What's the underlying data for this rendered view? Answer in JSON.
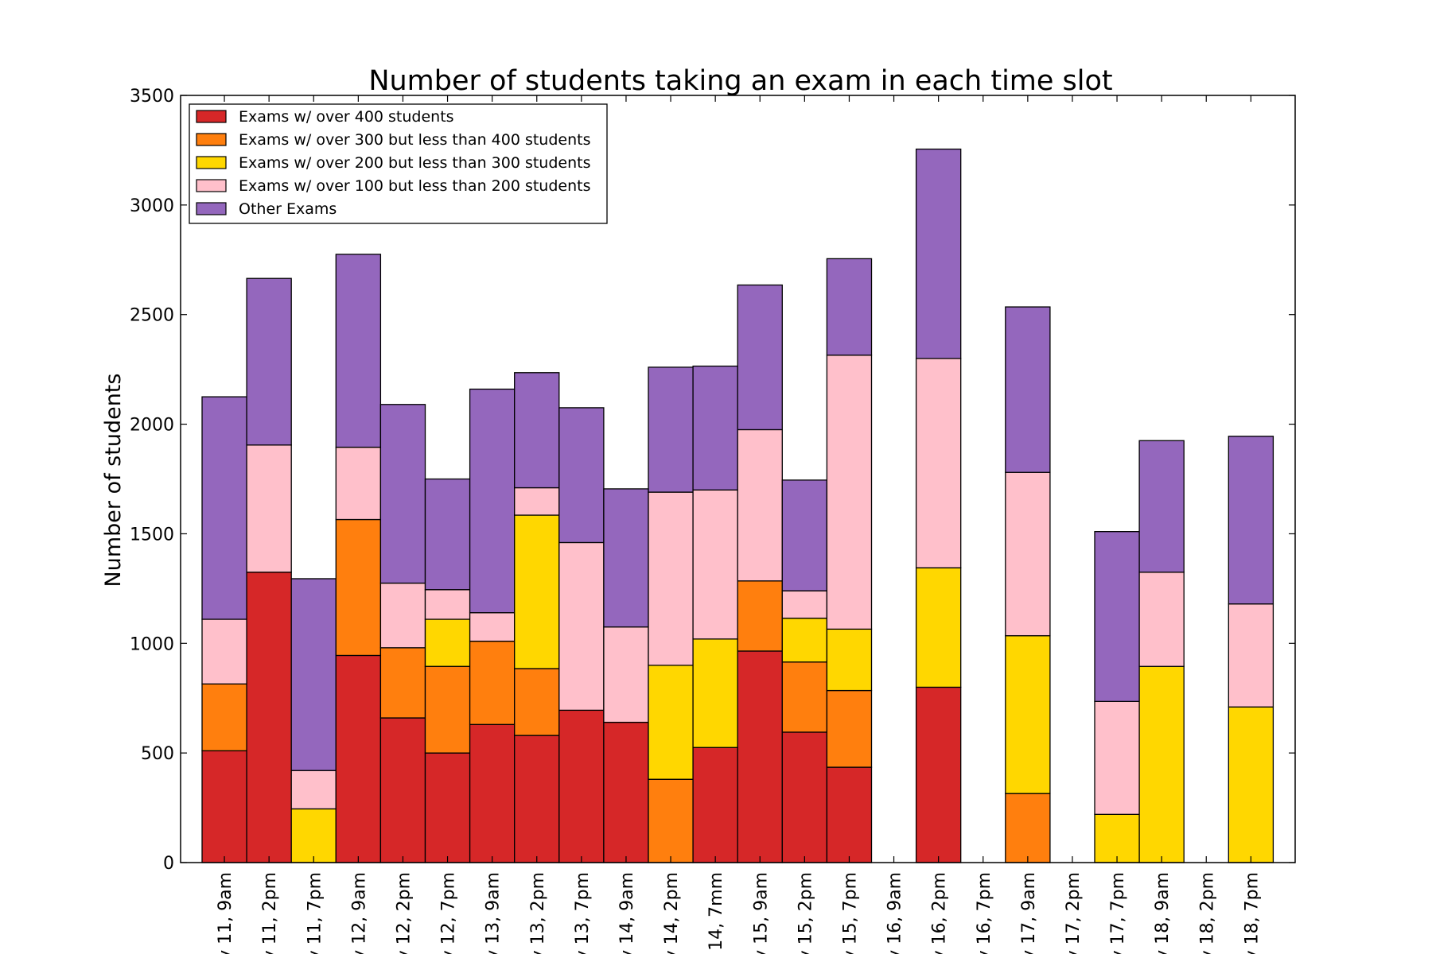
{
  "chart_data": {
    "type": "bar",
    "stacked": true,
    "title": "Number of students taking an exam in each time slot",
    "xlabel": "",
    "ylabel": "Number of students",
    "ylim": [
      0,
      3500
    ],
    "yticks": [
      0,
      500,
      1000,
      1500,
      2000,
      2500,
      3000,
      3500
    ],
    "grid": false,
    "legend_position": "upper-left",
    "categories": [
      "y 11, 9am",
      "y 11, 2pm",
      "y 11, 7pm",
      "y 12, 9am",
      "y 12, 2pm",
      "y 12, 7pm",
      "y 13, 9am",
      "y 13, 2pm",
      "y 13, 7pm",
      "y 14, 9am",
      "y 14, 2pm",
      "/ 14, 7mm",
      "y 15, 9am",
      "y 15, 2pm",
      "y 15, 7pm",
      "y 16, 9am",
      "y 16, 2pm",
      "y 16, 7pm",
      "y 17, 9am",
      "y 17, 2pm",
      "y 17, 7pm",
      "y 18, 9am",
      "y 18, 2pm",
      "y 18, 7pm"
    ],
    "series": [
      {
        "name": "Exams w/ over 400 students",
        "color": "#d62728",
        "values": [
          510,
          1325,
          0,
          945,
          660,
          500,
          630,
          580,
          695,
          640,
          0,
          525,
          965,
          595,
          435,
          0,
          800,
          0,
          0,
          0,
          0,
          0,
          0,
          0
        ]
      },
      {
        "name": "Exams w/ over 300 but less than 400 students",
        "color": "#ff7f0e",
        "values": [
          305,
          0,
          0,
          620,
          320,
          395,
          380,
          305,
          0,
          0,
          380,
          0,
          320,
          320,
          350,
          0,
          0,
          0,
          315,
          0,
          0,
          0,
          0,
          0
        ]
      },
      {
        "name": "Exams w/ over 200 but less than 300 students",
        "color": "#ffd700",
        "values": [
          0,
          0,
          245,
          0,
          0,
          215,
          0,
          700,
          0,
          0,
          520,
          495,
          0,
          200,
          280,
          0,
          545,
          0,
          720,
          0,
          220,
          895,
          0,
          710
        ]
      },
      {
        "name": "Exams w/ over 100 but less than 200 students",
        "color": "#ffc0cb",
        "values": [
          295,
          580,
          175,
          330,
          295,
          135,
          130,
          125,
          765,
          435,
          790,
          680,
          690,
          125,
          1250,
          0,
          955,
          0,
          745,
          0,
          515,
          430,
          0,
          470
        ]
      },
      {
        "name": "Other Exams",
        "color": "#9467bd",
        "values": [
          1015,
          760,
          875,
          880,
          815,
          505,
          1020,
          525,
          615,
          630,
          570,
          565,
          660,
          505,
          440,
          0,
          955,
          0,
          755,
          0,
          775,
          600,
          0,
          765
        ]
      }
    ]
  }
}
